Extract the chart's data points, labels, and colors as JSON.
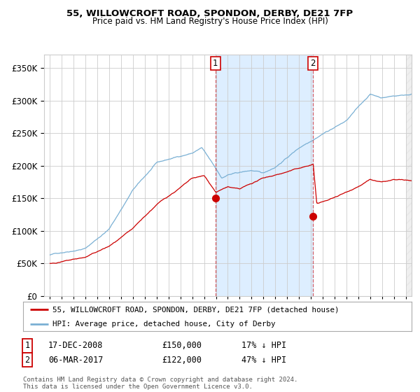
{
  "title1": "55, WILLOWCROFT ROAD, SPONDON, DERBY, DE21 7FP",
  "title2": "Price paid vs. HM Land Registry's House Price Index (HPI)",
  "legend_line1": "55, WILLOWCROFT ROAD, SPONDON, DERBY, DE21 7FP (detached house)",
  "legend_line2": "HPI: Average price, detached house, City of Derby",
  "annotation1_label": "1",
  "annotation1_date": "17-DEC-2008",
  "annotation1_price": "£150,000",
  "annotation1_hpi": "17% ↓ HPI",
  "annotation2_label": "2",
  "annotation2_date": "06-MAR-2017",
  "annotation2_price": "£122,000",
  "annotation2_hpi": "47% ↓ HPI",
  "footer": "Contains HM Land Registry data © Crown copyright and database right 2024.\nThis data is licensed under the Open Government Licence v3.0.",
  "sale1_year": 2008.96,
  "sale1_price": 150000,
  "sale2_year": 2017.18,
  "sale2_price": 122000,
  "red_color": "#cc0000",
  "blue_color": "#7ab0d4",
  "shade_color": "#ddeeff",
  "grid_color": "#cccccc",
  "bg_color": "#ffffff",
  "yticks": [
    0,
    50000,
    100000,
    150000,
    200000,
    250000,
    300000,
    350000
  ],
  "ylim": [
    0,
    370000
  ],
  "xlim_start": 1994.5,
  "xlim_end": 2025.5
}
